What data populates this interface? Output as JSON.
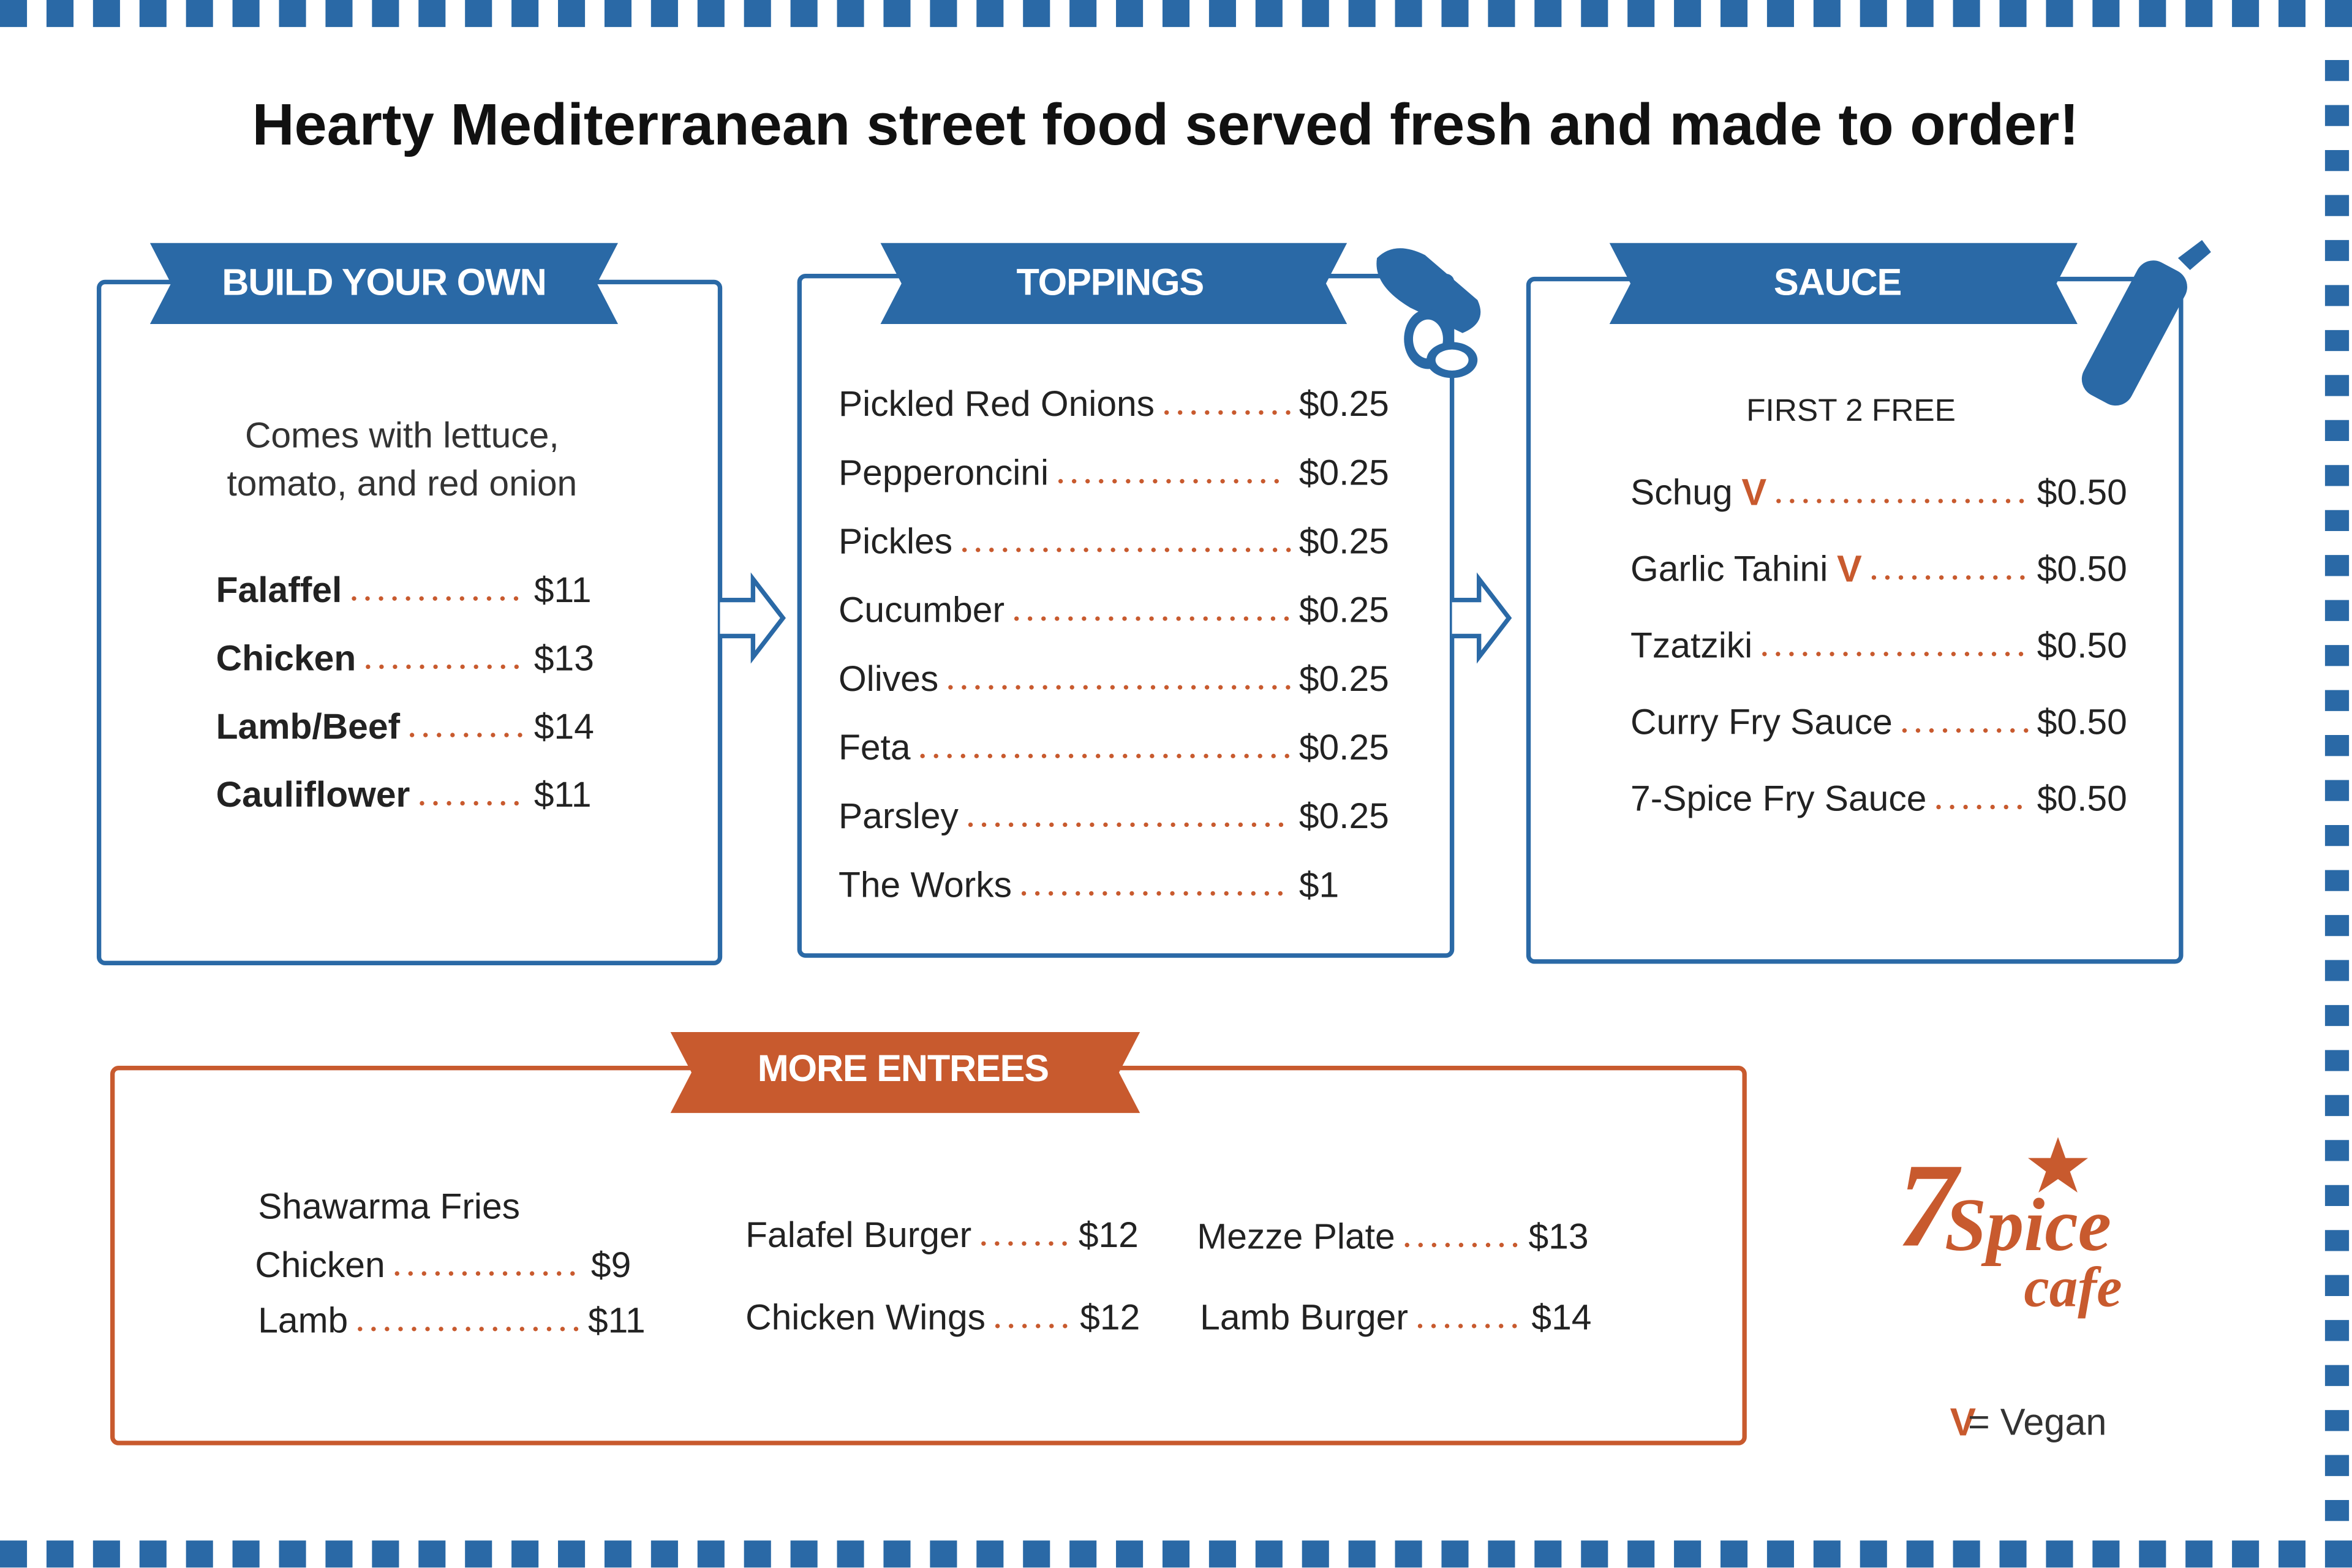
{
  "headline": "Hearty Mediterranean street food served fresh and made to order!",
  "build_your_own": {
    "title": "BUILD YOUR OWN",
    "description": [
      "Comes with lettuce,",
      "tomato, and red onion"
    ],
    "items": [
      {
        "name": "Falaffel",
        "price": "$11"
      },
      {
        "name": "Chicken",
        "price": "$13"
      },
      {
        "name": "Lamb/Beef",
        "price": "$14"
      },
      {
        "name": "Cauliflower",
        "price": "$11"
      }
    ]
  },
  "toppings": {
    "title": "TOPPINGS",
    "items": [
      {
        "name": "Pickled Red Onions",
        "price": "$0.25"
      },
      {
        "name": "Pepperoncini",
        "price": "$0.25"
      },
      {
        "name": "Pickles",
        "price": "$0.25"
      },
      {
        "name": "Cucumber",
        "price": "$0.25"
      },
      {
        "name": "Olives",
        "price": "$0.25"
      },
      {
        "name": "Feta",
        "price": "$0.25"
      },
      {
        "name": "Parsley",
        "price": "$0.25"
      },
      {
        "name": "The Works",
        "price": "$1"
      }
    ]
  },
  "sauce": {
    "title": "SAUCE",
    "note": "FIRST 2  FREE",
    "items": [
      {
        "name": "Schug",
        "vegan": "V",
        "price": "$0.50"
      },
      {
        "name": "Garlic Tahini",
        "vegan": "V",
        "price": "$0.50"
      },
      {
        "name": "Tzatziki",
        "price": "$0.50"
      },
      {
        "name": "Curry Fry Sauce",
        "price": "$0.50"
      },
      {
        "name": "7-Spice Fry Sauce",
        "price": "$0.50"
      }
    ]
  },
  "more_entrees": {
    "title": "MORE  ENTREES",
    "shawarma_fries": {
      "title": "Shawarma Fries",
      "items": [
        {
          "name": "Chicken",
          "price": "$9"
        },
        {
          "name": "Lamb",
          "price": "$11"
        }
      ]
    },
    "items": [
      {
        "name": "Falafel Burger",
        "price": "$12"
      },
      {
        "name": "Chicken Wings",
        "price": "$12"
      },
      {
        "name": "Mezze Plate",
        "price": "$13"
      },
      {
        "name": "Lamb Burger",
        "price": "$14"
      }
    ]
  },
  "logo": {
    "number": "7",
    "word": "Spice",
    "sub": "cafe"
  },
  "legend": {
    "mark": "V",
    "text": "= Vegan"
  }
}
